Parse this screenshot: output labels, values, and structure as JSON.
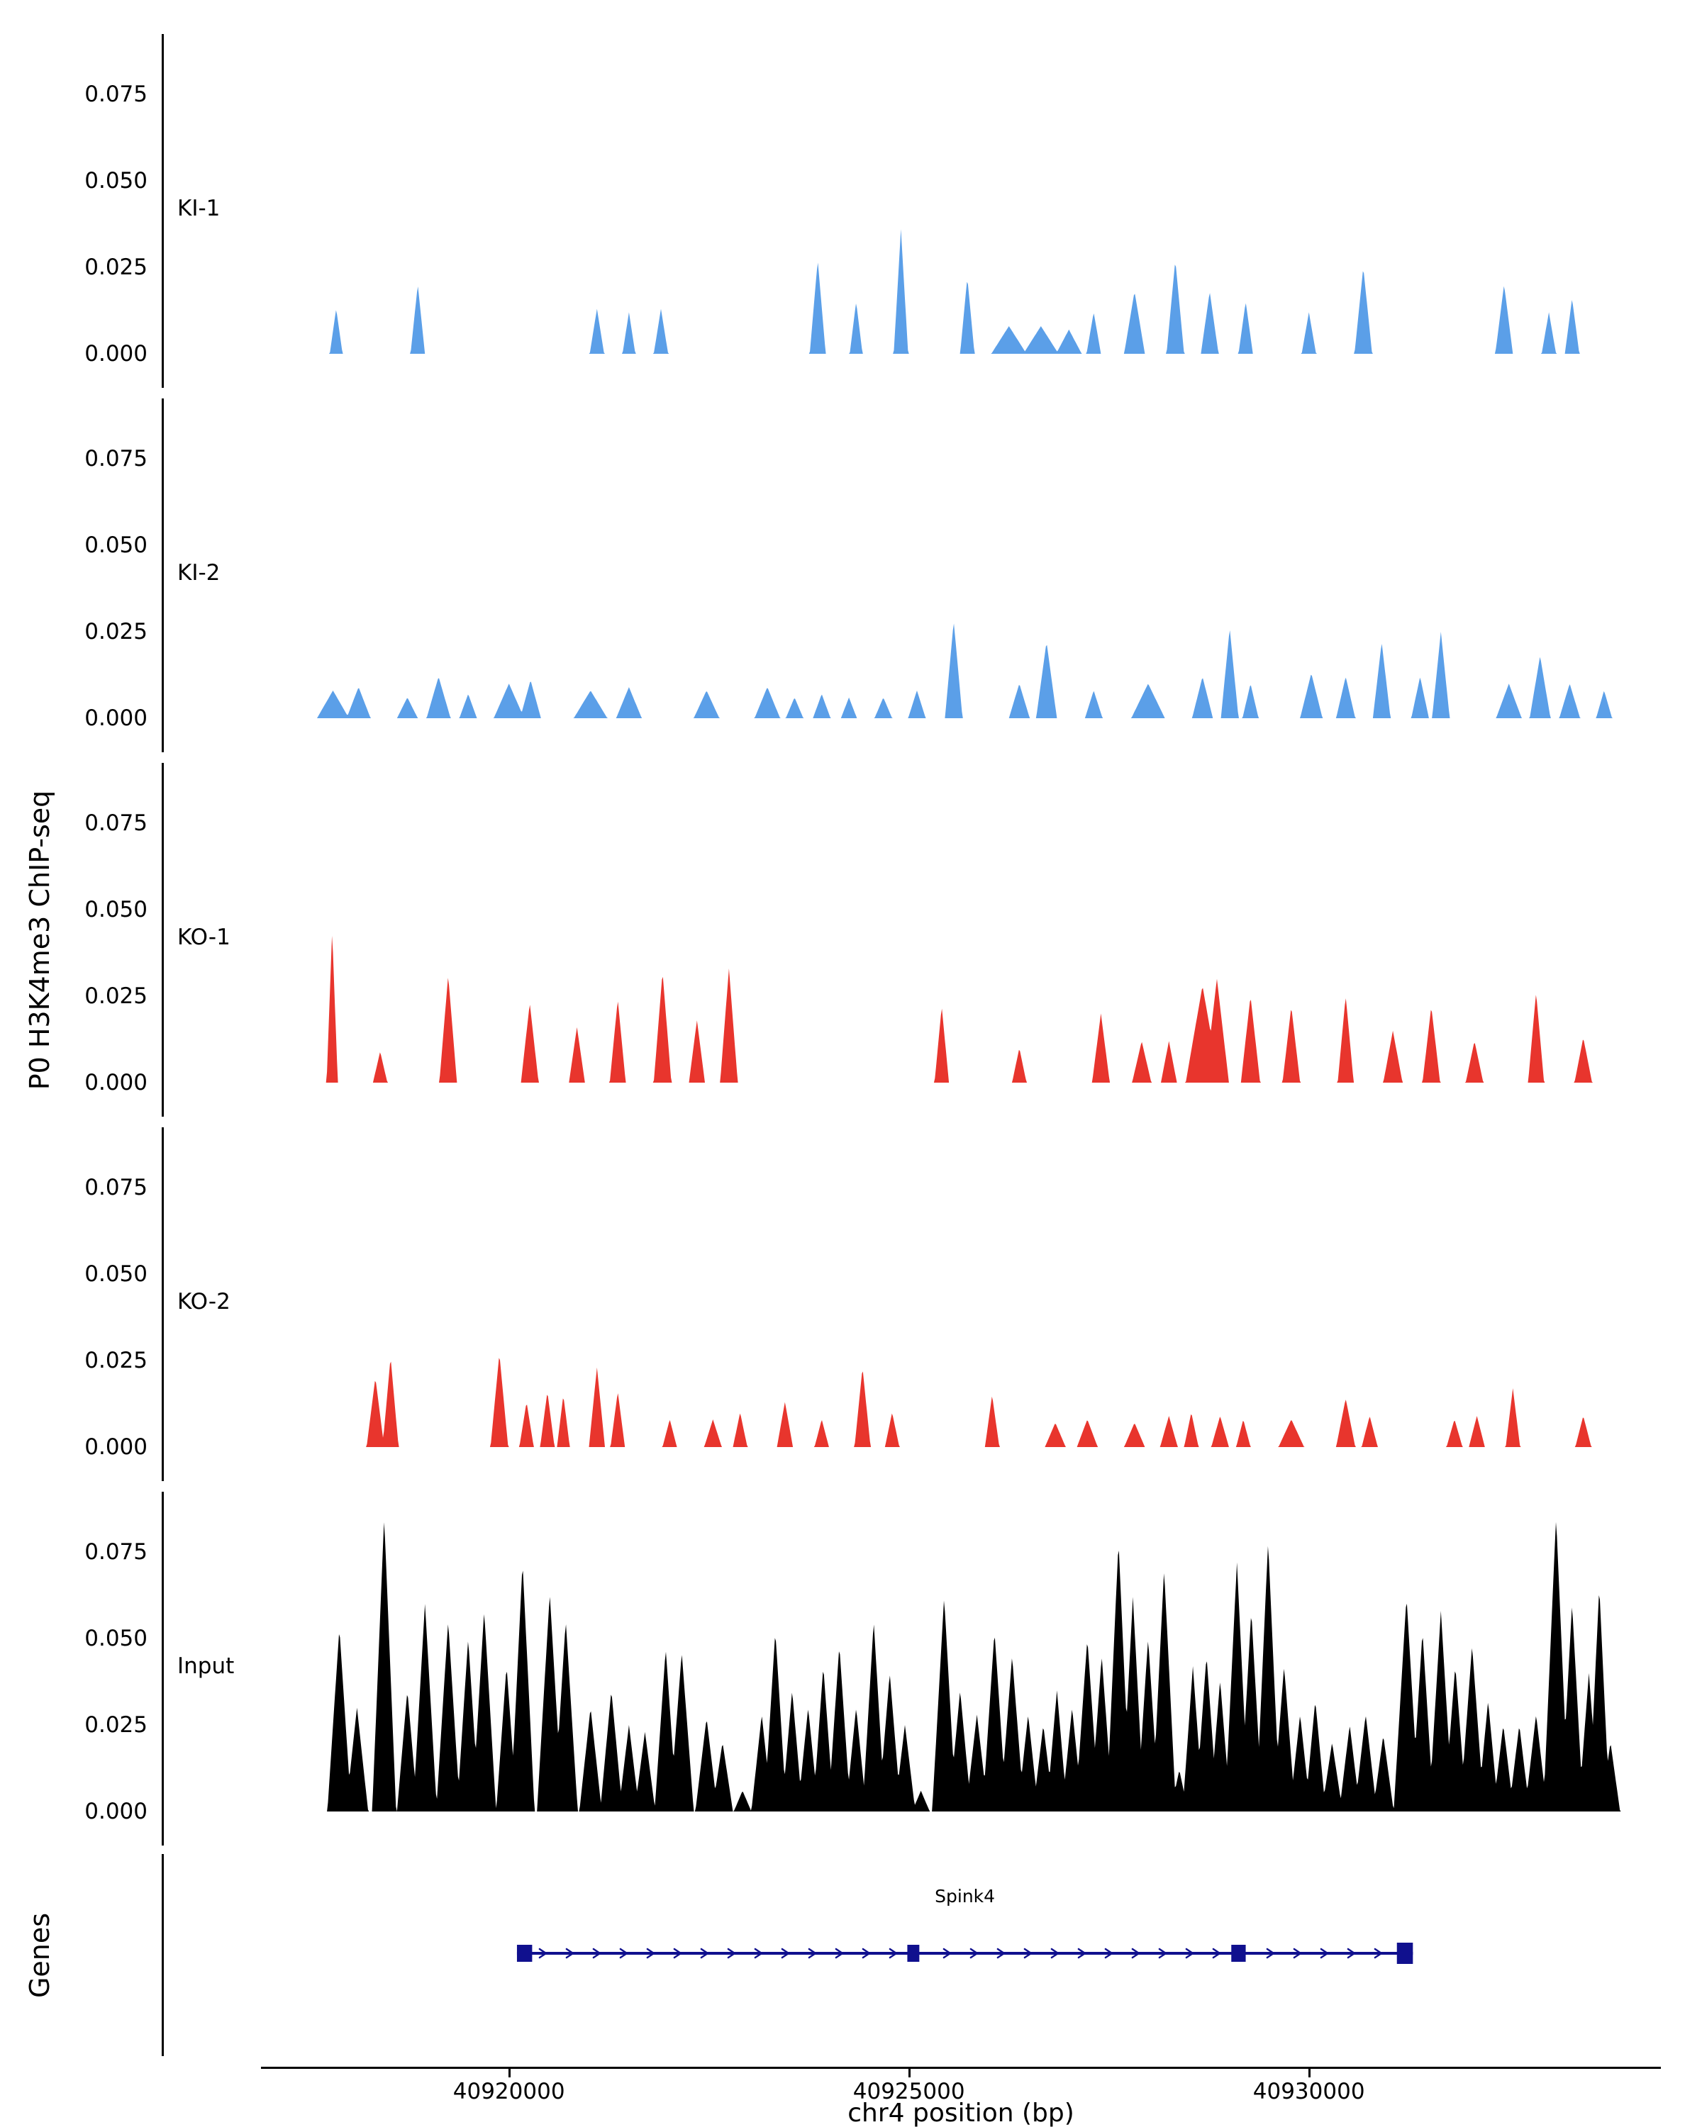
{
  "figure": {
    "ylabel": "P0 H3K4me3 ChIP-seq",
    "genes_axis_label": "Genes",
    "xlabel": "chr4 position (bp)"
  },
  "chart_data": {
    "type": "area",
    "title": "",
    "xlabel": "chr4 position (bp)",
    "ylabel": "P0 H3K4me3 ChIP-seq",
    "x_domain": [
      40916900,
      40934400
    ],
    "ylim": [
      0,
      0.092
    ],
    "grid": false,
    "y_ticks": [
      0,
      0.025,
      0.05,
      0.075
    ],
    "y_tick_labels": [
      "0.000",
      "0.025",
      "0.050",
      "0.075"
    ],
    "x_ticks": [
      {
        "value": 40920000,
        "label": "40920000"
      },
      {
        "value": 40925000,
        "label": "40925000"
      },
      {
        "value": 40930000,
        "label": "40930000"
      }
    ],
    "tracks": [
      {
        "name": "KI-1",
        "color": "#5B9FE8",
        "peaks": [
          [
            40917840,
            80,
            0.013
          ],
          [
            40918860,
            90,
            0.02
          ],
          [
            40921100,
            90,
            0.013
          ],
          [
            40921500,
            80,
            0.012
          ],
          [
            40921900,
            90,
            0.013
          ],
          [
            40923860,
            100,
            0.027
          ],
          [
            40924340,
            80,
            0.015
          ],
          [
            40924900,
            90,
            0.036
          ],
          [
            40925730,
            90,
            0.022
          ],
          [
            40926250,
            220,
            0.008
          ],
          [
            40926650,
            220,
            0.008
          ],
          [
            40927000,
            160,
            0.007
          ],
          [
            40927310,
            90,
            0.012
          ],
          [
            40927820,
            130,
            0.018
          ],
          [
            40928330,
            110,
            0.027
          ],
          [
            40928760,
            110,
            0.018
          ],
          [
            40929210,
            90,
            0.015
          ],
          [
            40930000,
            90,
            0.012
          ],
          [
            40930680,
            110,
            0.025
          ],
          [
            40932440,
            110,
            0.02
          ],
          [
            40933000,
            90,
            0.012
          ],
          [
            40933290,
            90,
            0.016
          ]
        ]
      },
      {
        "name": "KI-2",
        "color": "#5B9FE8",
        "peaks": [
          [
            40917800,
            200,
            0.008
          ],
          [
            40918120,
            150,
            0.009
          ],
          [
            40918730,
            130,
            0.006
          ],
          [
            40919120,
            150,
            0.012
          ],
          [
            40919490,
            110,
            0.007
          ],
          [
            40920000,
            190,
            0.01
          ],
          [
            40920270,
            130,
            0.011
          ],
          [
            40921020,
            210,
            0.008
          ],
          [
            40921500,
            160,
            0.009
          ],
          [
            40922470,
            160,
            0.008
          ],
          [
            40923230,
            160,
            0.009
          ],
          [
            40923570,
            110,
            0.006
          ],
          [
            40923910,
            110,
            0.007
          ],
          [
            40924250,
            100,
            0.006
          ],
          [
            40924680,
            110,
            0.006
          ],
          [
            40925100,
            110,
            0.008
          ],
          [
            40925560,
            110,
            0.028
          ],
          [
            40926380,
            130,
            0.01
          ],
          [
            40926720,
            130,
            0.022
          ],
          [
            40927310,
            110,
            0.008
          ],
          [
            40927990,
            210,
            0.01
          ],
          [
            40928670,
            130,
            0.012
          ],
          [
            40929010,
            110,
            0.026
          ],
          [
            40929270,
            100,
            0.01
          ],
          [
            40930030,
            140,
            0.013
          ],
          [
            40930460,
            120,
            0.012
          ],
          [
            40930910,
            110,
            0.022
          ],
          [
            40931390,
            110,
            0.012
          ],
          [
            40931650,
            110,
            0.025
          ],
          [
            40932500,
            160,
            0.01
          ],
          [
            40932890,
            130,
            0.018
          ],
          [
            40933260,
            130,
            0.01
          ],
          [
            40933690,
            100,
            0.008
          ]
        ]
      },
      {
        "name": "KO-1",
        "color": "#E8352D",
        "peaks": [
          [
            40917790,
            70,
            0.044
          ],
          [
            40918390,
            90,
            0.009
          ],
          [
            40919240,
            110,
            0.031
          ],
          [
            40920260,
            110,
            0.023
          ],
          [
            40920850,
            100,
            0.016
          ],
          [
            40921360,
            100,
            0.024
          ],
          [
            40921920,
            110,
            0.032
          ],
          [
            40922350,
            100,
            0.018
          ],
          [
            40922750,
            110,
            0.033
          ],
          [
            40925410,
            90,
            0.022
          ],
          [
            40926380,
            90,
            0.01
          ],
          [
            40927400,
            110,
            0.02
          ],
          [
            40927910,
            120,
            0.012
          ],
          [
            40928250,
            100,
            0.012
          ],
          [
            40928670,
            210,
            0.028
          ],
          [
            40928850,
            150,
            0.03
          ],
          [
            40929270,
            120,
            0.025
          ],
          [
            40929780,
            110,
            0.022
          ],
          [
            40930460,
            100,
            0.025
          ],
          [
            40931050,
            120,
            0.015
          ],
          [
            40931530,
            110,
            0.022
          ],
          [
            40932070,
            110,
            0.012
          ],
          [
            40932840,
            100,
            0.026
          ],
          [
            40933430,
            110,
            0.013
          ]
        ]
      },
      {
        "name": "KO-2",
        "color": "#E8352D",
        "peaks": [
          [
            40918330,
            110,
            0.02
          ],
          [
            40918520,
            100,
            0.026
          ],
          [
            40919880,
            110,
            0.027
          ],
          [
            40920220,
            90,
            0.013
          ],
          [
            40920480,
            90,
            0.016
          ],
          [
            40920680,
            80,
            0.015
          ],
          [
            40921100,
            100,
            0.023
          ],
          [
            40921360,
            90,
            0.016
          ],
          [
            40922010,
            90,
            0.008
          ],
          [
            40922550,
            110,
            0.008
          ],
          [
            40922890,
            90,
            0.01
          ],
          [
            40923450,
            100,
            0.013
          ],
          [
            40923910,
            90,
            0.008
          ],
          [
            40924420,
            100,
            0.023
          ],
          [
            40924790,
            90,
            0.01
          ],
          [
            40926040,
            90,
            0.015
          ],
          [
            40926830,
            130,
            0.007
          ],
          [
            40927230,
            130,
            0.008
          ],
          [
            40927820,
            130,
            0.007
          ],
          [
            40928250,
            110,
            0.009
          ],
          [
            40928530,
            90,
            0.01
          ],
          [
            40928890,
            110,
            0.009
          ],
          [
            40929180,
            90,
            0.008
          ],
          [
            40929780,
            160,
            0.008
          ],
          [
            40930460,
            120,
            0.014
          ],
          [
            40930760,
            100,
            0.009
          ],
          [
            40931820,
            100,
            0.008
          ],
          [
            40932100,
            100,
            0.009
          ],
          [
            40932550,
            90,
            0.017
          ],
          [
            40933430,
            100,
            0.009
          ]
        ]
      },
      {
        "name": "Input",
        "color": "#000000",
        "peaks": [
          [
            40917880,
            150,
            0.053
          ],
          [
            40918100,
            140,
            0.03
          ],
          [
            40918440,
            150,
            0.085
          ],
          [
            40918730,
            130,
            0.035
          ],
          [
            40918950,
            150,
            0.06
          ],
          [
            40919240,
            150,
            0.055
          ],
          [
            40919490,
            140,
            0.05
          ],
          [
            40919690,
            150,
            0.058
          ],
          [
            40919970,
            130,
            0.042
          ],
          [
            40920170,
            150,
            0.072
          ],
          [
            40920510,
            160,
            0.063
          ],
          [
            40920710,
            150,
            0.055
          ],
          [
            40921020,
            140,
            0.03
          ],
          [
            40921280,
            140,
            0.035
          ],
          [
            40921500,
            130,
            0.025
          ],
          [
            40921700,
            130,
            0.023
          ],
          [
            40921960,
            140,
            0.047
          ],
          [
            40922160,
            150,
            0.046
          ],
          [
            40922470,
            140,
            0.027
          ],
          [
            40922670,
            130,
            0.02
          ],
          [
            40922920,
            110,
            0.006
          ],
          [
            40923160,
            130,
            0.028
          ],
          [
            40923330,
            140,
            0.052
          ],
          [
            40923540,
            130,
            0.035
          ],
          [
            40923740,
            130,
            0.03
          ],
          [
            40923930,
            130,
            0.042
          ],
          [
            40924130,
            140,
            0.048
          ],
          [
            40924340,
            130,
            0.03
          ],
          [
            40924560,
            140,
            0.055
          ],
          [
            40924760,
            140,
            0.04
          ],
          [
            40924950,
            130,
            0.025
          ],
          [
            40925150,
            110,
            0.006
          ],
          [
            40925440,
            150,
            0.062
          ],
          [
            40925640,
            140,
            0.035
          ],
          [
            40925850,
            140,
            0.028
          ],
          [
            40926070,
            150,
            0.052
          ],
          [
            40926290,
            150,
            0.045
          ],
          [
            40926490,
            130,
            0.028
          ],
          [
            40926680,
            130,
            0.025
          ],
          [
            40926850,
            130,
            0.035
          ],
          [
            40927040,
            130,
            0.03
          ],
          [
            40927230,
            150,
            0.05
          ],
          [
            40927410,
            140,
            0.045
          ],
          [
            40927620,
            150,
            0.078
          ],
          [
            40927800,
            140,
            0.062
          ],
          [
            40927990,
            140,
            0.05
          ],
          [
            40928190,
            150,
            0.07
          ],
          [
            40928380,
            110,
            0.012
          ],
          [
            40928550,
            130,
            0.042
          ],
          [
            40928720,
            140,
            0.045
          ],
          [
            40928890,
            130,
            0.038
          ],
          [
            40929100,
            150,
            0.072
          ],
          [
            40929280,
            140,
            0.058
          ],
          [
            40929490,
            150,
            0.078
          ],
          [
            40929690,
            140,
            0.042
          ],
          [
            40929890,
            130,
            0.028
          ],
          [
            40930080,
            130,
            0.032
          ],
          [
            40930290,
            130,
            0.02
          ],
          [
            40930510,
            130,
            0.025
          ],
          [
            40930710,
            140,
            0.028
          ],
          [
            40930930,
            130,
            0.022
          ],
          [
            40931220,
            160,
            0.062
          ],
          [
            40931420,
            140,
            0.052
          ],
          [
            40931650,
            150,
            0.058
          ],
          [
            40931830,
            140,
            0.042
          ],
          [
            40932040,
            150,
            0.048
          ],
          [
            40932240,
            130,
            0.032
          ],
          [
            40932430,
            130,
            0.025
          ],
          [
            40932630,
            130,
            0.025
          ],
          [
            40932840,
            140,
            0.028
          ],
          [
            40933090,
            160,
            0.085
          ],
          [
            40933290,
            140,
            0.06
          ],
          [
            40933500,
            130,
            0.04
          ],
          [
            40933630,
            130,
            0.065
          ],
          [
            40933770,
            120,
            0.02
          ]
        ]
      }
    ],
    "gene_track": {
      "label": "Genes",
      "gene": {
        "name": "Spink4",
        "start": 40920100,
        "end": 40931300,
        "strand": "+",
        "color": "#10108E",
        "exons": [
          [
            40920100,
            40920290
          ],
          [
            40924980,
            40925130
          ],
          [
            40929030,
            40929210
          ],
          [
            40931100,
            40931300
          ]
        ]
      }
    }
  }
}
